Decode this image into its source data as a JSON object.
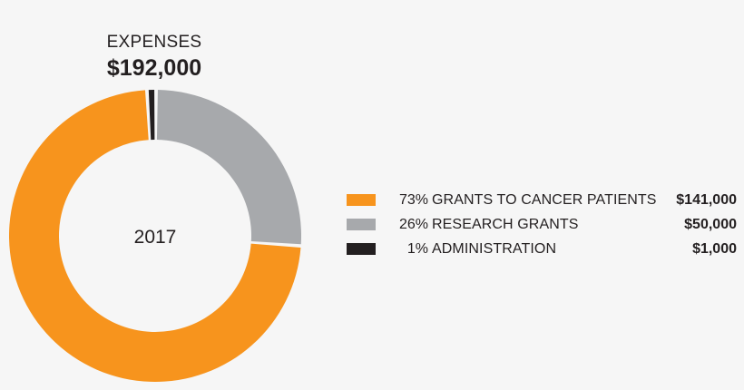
{
  "header": {
    "label": "EXPENSES",
    "total": "$192,000"
  },
  "chart_data": {
    "type": "pie",
    "title": "EXPENSES",
    "total": "$192,000",
    "center_label": "2017",
    "donut": true,
    "legend_placement": "right",
    "slices": [
      {
        "label": "GRANTS TO CANCER PATIENTS",
        "percent": 73,
        "percent_label": "73%",
        "amount": "$141,000",
        "color": "#f7941d"
      },
      {
        "label": "RESEARCH GRANTS",
        "percent": 26,
        "percent_label": "26%",
        "amount": "$50,000",
        "color": "#a7a9ac"
      },
      {
        "label": "ADMINISTRATION",
        "percent": 1,
        "percent_label": "1%",
        "amount": "$1,000",
        "color": "#231f20"
      }
    ]
  }
}
